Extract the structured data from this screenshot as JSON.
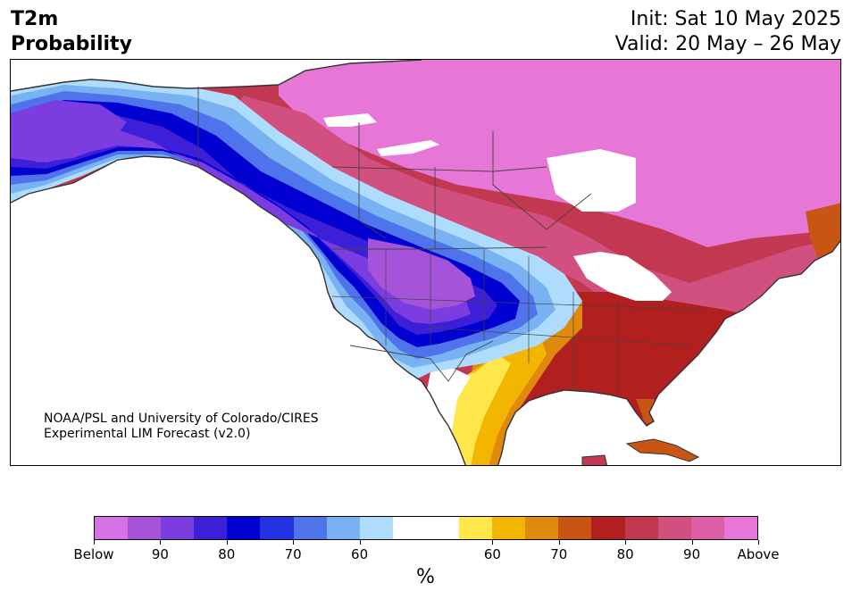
{
  "title": {
    "line1": "T2m",
    "line2": "Probability"
  },
  "init": {
    "line1": "Init: Sat 10 May 2025",
    "line2": "Valid: 20 May – 26 May"
  },
  "credit": {
    "line1": "NOAA/PSL and University of Colorado/CIRES",
    "line2": "Experimental LIM Forecast (v2.0)"
  },
  "colorbar": {
    "colors": [
      "#d771e6",
      "#a553d8",
      "#7b3de0",
      "#3e1fd8",
      "#0000d0",
      "#2433e0",
      "#4f73ea",
      "#78b2f2",
      "#aedcfc",
      "#ffffff",
      "#ffffff",
      "#ffe64a",
      "#f2b500",
      "#e08a0c",
      "#c95515",
      "#b11f1f",
      "#c23850",
      "#d25080",
      "#dd5fa6",
      "#e677d6"
    ],
    "ticks": [
      "Below",
      "90",
      "80",
      "70",
      "60",
      "60",
      "70",
      "80",
      "90",
      "Above"
    ],
    "unit": "%"
  },
  "legend_categories": {
    "below": "Below",
    "above": "Above"
  }
}
